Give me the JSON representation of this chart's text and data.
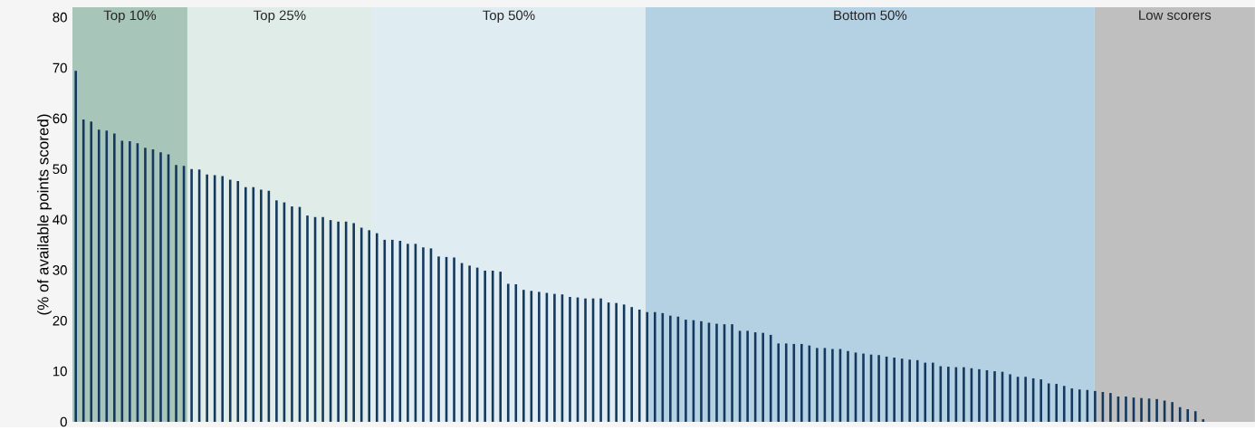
{
  "chart_data": {
    "type": "bar",
    "ylabel": "(% of available points scored)",
    "categories": [
      null,
      null,
      null,
      null,
      null,
      null,
      null,
      null,
      null,
      null,
      null,
      null,
      null,
      null,
      null,
      null,
      null,
      null,
      null,
      null,
      null,
      null,
      null,
      null,
      null,
      null,
      null,
      null,
      null,
      null,
      null,
      null,
      null,
      null,
      null,
      null,
      null,
      null,
      null,
      null,
      null,
      null,
      null,
      null,
      null,
      null,
      null,
      null,
      null,
      null,
      null,
      null,
      null,
      null,
      null,
      null,
      null,
      null,
      null,
      null,
      null,
      null,
      null,
      null,
      null,
      null,
      null,
      null,
      null,
      null,
      null,
      null,
      null,
      null,
      null,
      null,
      null,
      null,
      null,
      null,
      null,
      null,
      null,
      null,
      null,
      null,
      null,
      null,
      null,
      null,
      null,
      null,
      null,
      null,
      null,
      null,
      null,
      null,
      null,
      null,
      null,
      null,
      null,
      null,
      null,
      null,
      null,
      null,
      null,
      null,
      null,
      null,
      null,
      null,
      null,
      null,
      null,
      null,
      null,
      null,
      null,
      null,
      null,
      null,
      null,
      null,
      null,
      null,
      null,
      null,
      null,
      null,
      null,
      null,
      null,
      null,
      null,
      null,
      null,
      null,
      null,
      null,
      null,
      null,
      null,
      null,
      null
    ],
    "values": [
      69.4,
      59.8,
      59.4,
      57.8,
      57.6,
      57.0,
      55.6,
      55.5,
      55.1,
      54.2,
      53.9,
      53.3,
      52.9,
      50.8,
      50.6,
      50.0,
      49.9,
      48.9,
      48.8,
      48.6,
      47.9,
      47.6,
      46.4,
      46.4,
      45.9,
      45.7,
      43.8,
      43.4,
      42.6,
      42.5,
      40.8,
      40.5,
      40.5,
      39.9,
      39.6,
      39.6,
      39.3,
      38.4,
      37.9,
      37.3,
      36.0,
      36.0,
      35.8,
      35.2,
      35.2,
      34.5,
      34.3,
      32.7,
      32.6,
      32.5,
      31.4,
      30.9,
      30.5,
      29.9,
      29.9,
      29.7,
      27.3,
      27.2,
      26.1,
      25.9,
      25.7,
      25.5,
      25.3,
      25.2,
      24.7,
      24.6,
      24.4,
      24.4,
      24.4,
      23.6,
      23.5,
      23.2,
      22.7,
      22.2,
      21.7,
      21.7,
      21.5,
      21.0,
      20.8,
      20.2,
      20.1,
      19.9,
      19.6,
      19.4,
      19.3,
      19.3,
      18.0,
      18.0,
      17.7,
      17.6,
      17.2,
      15.5,
      15.5,
      15.4,
      15.4,
      15.1,
      14.6,
      14.6,
      14.4,
      14.4,
      14.0,
      13.7,
      13.5,
      13.3,
      13.2,
      12.9,
      12.7,
      12.5,
      12.3,
      12.2,
      11.7,
      11.7,
      11.0,
      10.9,
      10.8,
      10.8,
      10.6,
      10.4,
      10.2,
      10.0,
      9.9,
      9.4,
      8.9,
      8.9,
      8.6,
      8.4,
      7.6,
      7.5,
      7.1,
      6.6,
      6.4,
      6.3,
      6.1,
      5.9,
      5.7,
      5.0,
      5.0,
      4.8,
      4.7,
      4.6,
      4.5,
      4.2,
      3.9,
      2.9,
      2.5,
      2.1,
      0.5
    ],
    "color": "#14385e",
    "ylim": [
      0,
      82
    ],
    "yticks": [
      0,
      10,
      20,
      30,
      40,
      50,
      60,
      70,
      80
    ],
    "tick_labels": "y",
    "annotations": [
      "Top 10%",
      "Top 25%",
      "Top 50%",
      "Bottom 50%",
      "Low scorers"
    ]
  }
}
